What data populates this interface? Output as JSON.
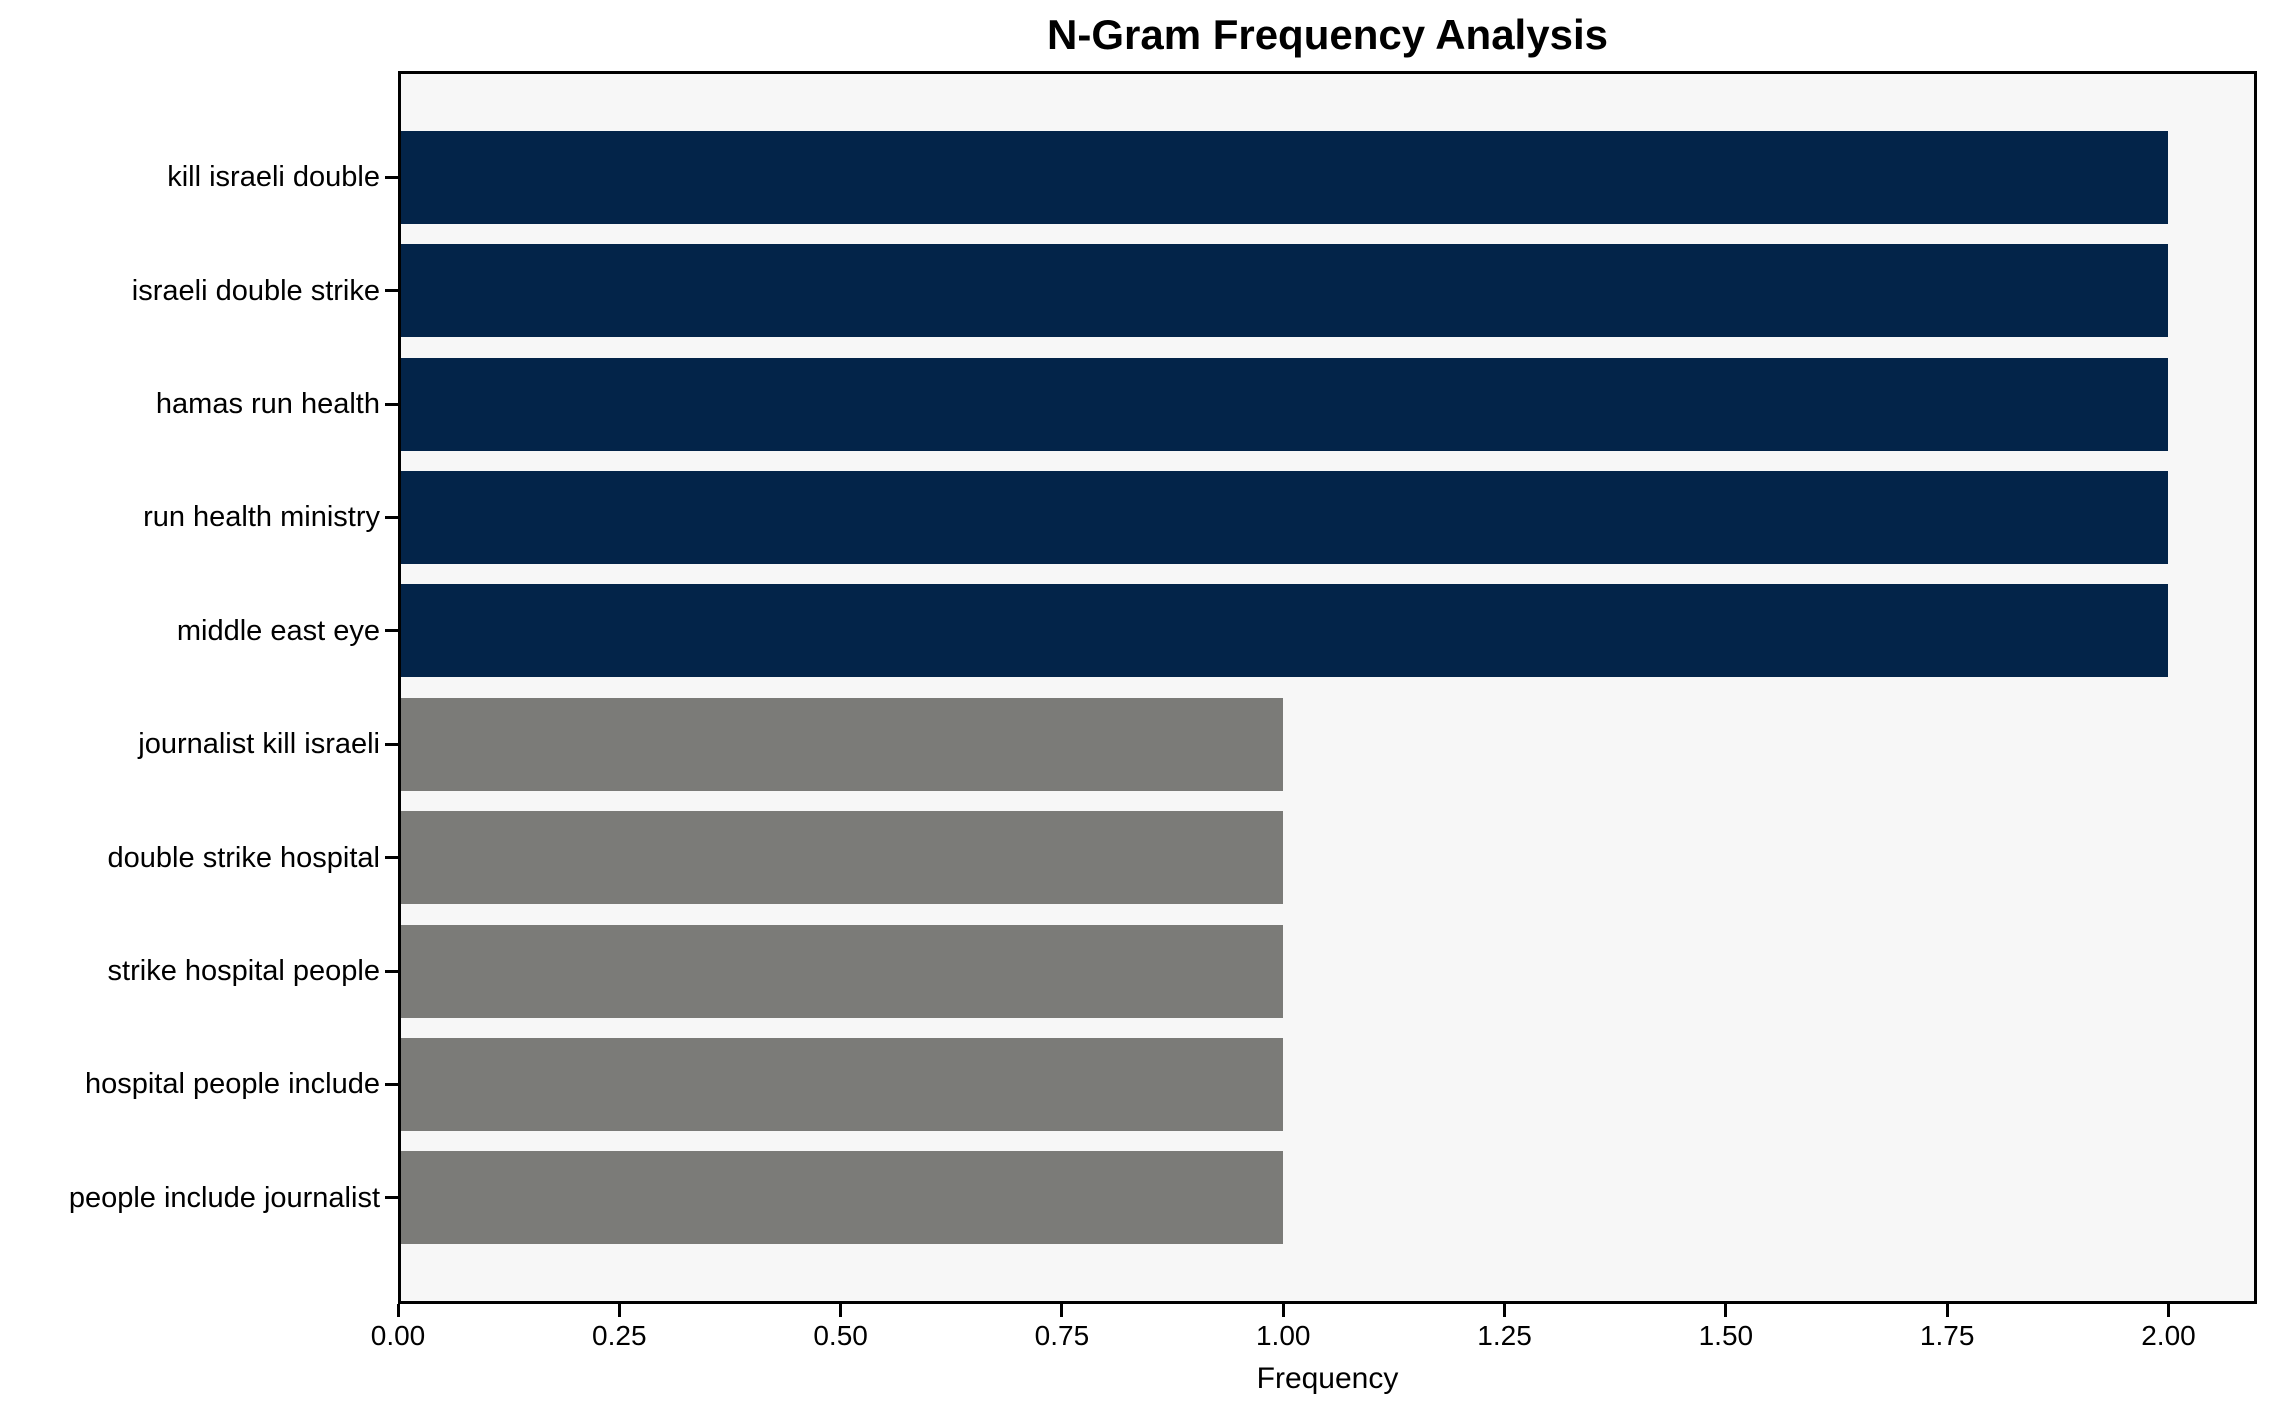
{
  "chart_data": {
    "type": "bar",
    "orientation": "horizontal",
    "title": "N-Gram Frequency Analysis",
    "xlabel": "Frequency",
    "ylabel": "",
    "categories": [
      "kill israeli double",
      "israeli double strike",
      "hamas run health",
      "run health ministry",
      "middle east eye",
      "journalist kill israeli",
      "double strike hospital",
      "strike hospital people",
      "hospital people include",
      "people include journalist"
    ],
    "values": [
      2,
      2,
      2,
      2,
      2,
      1,
      1,
      1,
      1,
      1
    ],
    "xlim": [
      0,
      2.1
    ],
    "xticks": [
      0,
      0.25,
      0.5,
      0.75,
      1.0,
      1.25,
      1.5,
      1.75,
      2.0
    ],
    "xtick_labels": [
      "0.00",
      "0.25",
      "0.50",
      "0.75",
      "1.00",
      "1.25",
      "1.50",
      "1.75",
      "2.00"
    ],
    "grid": false,
    "legend_position": "none",
    "colors": {
      "bar_high": "#032449",
      "bar_low": "#7b7b78",
      "plot_background": "#f7f7f7",
      "spine": "#000000",
      "text": "#000000"
    },
    "color_rule": "bars with value 2 use bar_high (navy), bars with value 1 use bar_low (gray)"
  }
}
